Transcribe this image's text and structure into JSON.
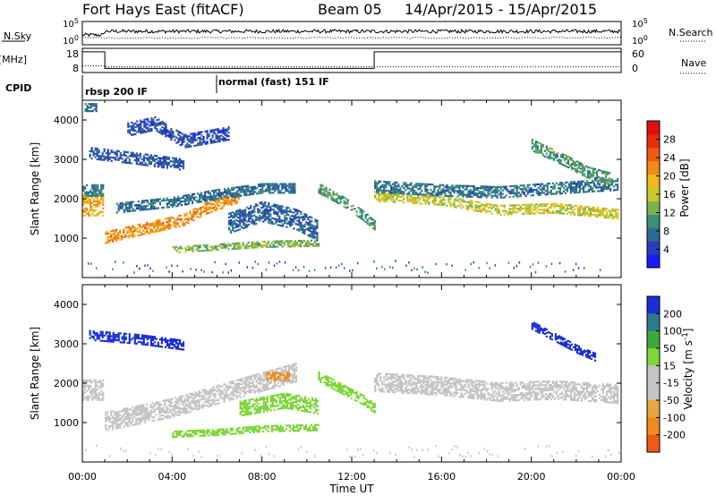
{
  "header": {
    "radar": "Fort Hays East (fitACF)",
    "beam": "Beam 05",
    "date_range": "14/Apr/2015 - 15/Apr/2015"
  },
  "colors": {
    "power_scale": [
      "#1a1aff",
      "#2a3dbf",
      "#2e6b8f",
      "#3a8e7a",
      "#7ab34c",
      "#c8c830",
      "#f2b81c",
      "#f28a18",
      "#ee5a14",
      "#e82c10",
      "#e01010"
    ],
    "velocity_scale": [
      "#1a2fd6",
      "#2d7a8a",
      "#3ea83e",
      "#7dd63a",
      "#c4c4c4",
      "#c4c4c4",
      "#e8a640",
      "#f08a1c",
      "#f05a14",
      "#e01010"
    ]
  },
  "chart_data": [
    {
      "type": "line",
      "name": "sky-noise-panel",
      "ylabel": "N.Sky",
      "right_label": "N.Search",
      "left_ticks": [
        "10^5",
        "10^0"
      ],
      "right_ticks": [
        "10^5",
        "10^0"
      ],
      "x_range_hours": [
        0,
        24
      ],
      "series": [
        {
          "style": "solid"
        },
        {
          "style": "dotted"
        }
      ]
    },
    {
      "type": "line",
      "name": "frequency-panel",
      "ylabel": "Freq. [MHz]",
      "right_label": "Nave",
      "left_ticks": [
        "18",
        "8"
      ],
      "right_ticks": [
        "60",
        "0"
      ],
      "freq_series": {
        "x_hours": [
          0,
          1,
          1,
          13,
          13,
          24
        ],
        "freq_mhz": [
          17.6,
          17.6,
          9.2,
          9.2,
          17.6,
          17.6
        ]
      },
      "nave_series": {
        "x_hours": [
          0,
          1,
          1,
          24
        ],
        "nave": [
          15,
          15,
          12,
          12
        ]
      }
    },
    {
      "type": "table",
      "name": "cpid-panel",
      "label": "CPID",
      "segments": [
        {
          "start_hour": 0,
          "end_hour": 6,
          "text": "rbsp 200 IF"
        },
        {
          "start_hour": 6,
          "end_hour": 24,
          "text": "normal (fast) 151 IF"
        }
      ]
    },
    {
      "type": "heatmap",
      "name": "power-panel",
      "ylabel": "Slant Range [km]",
      "xlim": [
        0,
        24
      ],
      "ylim": [
        0,
        4500
      ],
      "y_ticks": [
        1000,
        2000,
        3000,
        4000
      ],
      "colorbar_label": "Power [dB]",
      "colorbar_ticks": [
        4,
        8,
        12,
        16,
        20,
        24,
        28
      ],
      "colorbar_range": [
        0,
        32
      ],
      "features": [
        {
          "hours": [
            0.0,
            0.9
          ],
          "range_center_km": [
            1850,
            1850
          ],
          "width_km": 500,
          "db": 20
        },
        {
          "hours": [
            0.0,
            0.9
          ],
          "range_center_km": [
            2250,
            2250
          ],
          "width_km": 300,
          "db": 8
        },
        {
          "hours": [
            0.1,
            0.6
          ],
          "range_center_km": [
            4350,
            4350
          ],
          "width_km": 200,
          "db": 6
        },
        {
          "hours": [
            1.0,
            2.5,
            4.5,
            5.5,
            7.0
          ],
          "range_center_km": [
            1050,
            1250,
            1500,
            1800,
            2100
          ],
          "width_km": 300,
          "db": 22
        },
        {
          "hours": [
            1.5,
            4.0,
            6.0,
            8.0,
            9.5
          ],
          "range_center_km": [
            1800,
            1950,
            2150,
            2300,
            2300
          ],
          "width_km": 250,
          "db": 7
        },
        {
          "hours": [
            0.3,
            2.5,
            4.5
          ],
          "range_center_km": [
            3200,
            3050,
            2900
          ],
          "width_km": 300,
          "db": 5
        },
        {
          "hours": [
            2.0,
            3.2,
            4.5,
            6.5
          ],
          "range_center_km": [
            3800,
            3950,
            3500,
            3700
          ],
          "width_km": 350,
          "db": 4
        },
        {
          "hours": [
            4.0,
            5.5,
            8.0,
            10.5
          ],
          "range_center_km": [
            730,
            780,
            870,
            900
          ],
          "width_km": 140,
          "db": 13
        },
        {
          "hours": [
            6.5,
            8.0,
            9.5,
            10.5
          ],
          "range_center_km": [
            1400,
            1700,
            1500,
            1200
          ],
          "width_km": 500,
          "db": 6
        },
        {
          "hours": [
            10.5,
            11.5,
            12.5,
            13.0
          ],
          "range_center_km": [
            2300,
            2000,
            1600,
            1350
          ],
          "width_km": 250,
          "db": 10
        },
        {
          "hours": [
            13.0,
            16.0,
            18.5,
            21.0,
            23.8
          ],
          "range_center_km": [
            2100,
            2000,
            1750,
            1800,
            1650
          ],
          "width_km": 260,
          "db": 16
        },
        {
          "hours": [
            13.0,
            16.0,
            18.5,
            21.0,
            23.8
          ],
          "range_center_km": [
            2350,
            2250,
            2200,
            2300,
            2400
          ],
          "width_km": 300,
          "db": 7
        },
        {
          "hours": [
            20.0,
            21.5,
            22.5,
            23.5
          ],
          "range_center_km": [
            3400,
            3000,
            2700,
            2550
          ],
          "width_km": 300,
          "db": 10
        }
      ],
      "ground_scatter_band": {
        "hours": [
          0,
          24
        ],
        "range_km": [
          150,
          450
        ],
        "db": 6,
        "sparse": true
      }
    },
    {
      "type": "heatmap",
      "name": "velocity-panel",
      "xlabel": "Time UT",
      "ylabel": "Slant Range [km]",
      "xlim": [
        0,
        24
      ],
      "ylim": [
        0,
        4500
      ],
      "x_tick_labels": [
        "00:00",
        "04:00",
        "08:00",
        "12:00",
        "16:00",
        "20:00",
        "00:00"
      ],
      "y_ticks": [
        1000,
        2000,
        3000,
        4000
      ],
      "colorbar_label": "Velocity [m s^-1]",
      "colorbar_ticks": [
        200,
        100,
        50,
        15,
        -15,
        -50,
        -100,
        -200
      ],
      "colorbar_range": [
        -250,
        250
      ],
      "features": [
        {
          "hours": [
            0.0,
            0.9
          ],
          "range_center_km": [
            1850,
            1850
          ],
          "width_km": 500,
          "vel": 0
        },
        {
          "hours": [
            1.0,
            4.0,
            7.0,
            9.5
          ],
          "range_center_km": [
            1050,
            1400,
            1900,
            2300
          ],
          "width_km": 450,
          "vel": 0
        },
        {
          "hours": [
            0.3,
            2.5,
            4.5
          ],
          "range_center_km": [
            3250,
            3150,
            3000
          ],
          "width_km": 250,
          "vel": 220
        },
        {
          "hours": [
            4.0,
            6.0,
            8.0,
            10.5
          ],
          "range_center_km": [
            730,
            780,
            870,
            900
          ],
          "width_km": 140,
          "vel": 35
        },
        {
          "hours": [
            7.0,
            9.0,
            10.5
          ],
          "range_center_km": [
            1400,
            1600,
            1450
          ],
          "width_km": 400,
          "vel": 30
        },
        {
          "hours": [
            8.2,
            9.2
          ],
          "range_center_km": [
            2200,
            2200
          ],
          "width_km": 200,
          "vel": -180
        },
        {
          "hours": [
            10.5,
            11.5,
            12.5,
            13.0
          ],
          "range_center_km": [
            2200,
            1900,
            1600,
            1400
          ],
          "width_km": 250,
          "vel": 40
        },
        {
          "hours": [
            13.0,
            16.0,
            18.5,
            21.0,
            23.8
          ],
          "range_center_km": [
            2050,
            1950,
            1800,
            1850,
            1750
          ],
          "width_km": 450,
          "vel": 0
        },
        {
          "hours": [
            20.0,
            21.0,
            22.0,
            22.8
          ],
          "range_center_km": [
            3500,
            3200,
            2900,
            2700
          ],
          "width_km": 200,
          "vel": 220
        }
      ],
      "ground_scatter_band": {
        "hours": [
          0,
          24
        ],
        "range_km": [
          150,
          450
        ],
        "vel": 0,
        "sparse": true
      }
    }
  ]
}
